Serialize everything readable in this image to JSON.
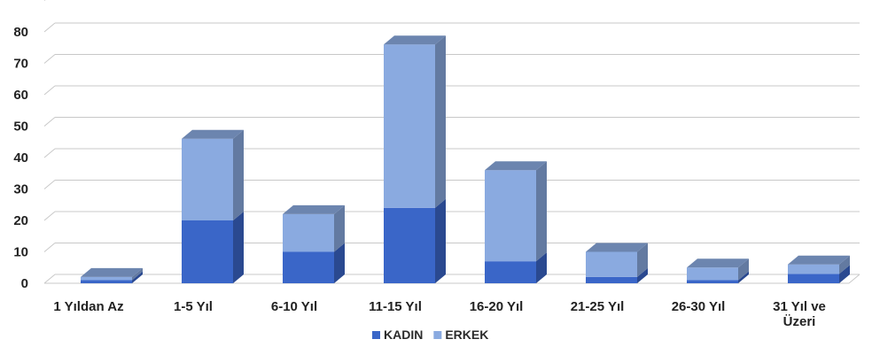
{
  "chart_data": {
    "type": "bar",
    "stacked": true,
    "style": "3d-stacked-column",
    "categories": [
      "1 Yıldan Az",
      "1-5 Yıl",
      "6-10 Yıl",
      "11-15 Yıl",
      "16-20 Yıl",
      "21-25 Yıl",
      "26-30 Yıl",
      "31 Yıl ve Üzeri"
    ],
    "category_lines": [
      [
        "1 Yıldan Az"
      ],
      [
        "1-5 Yıl"
      ],
      [
        "6-10 Yıl"
      ],
      [
        "11-15 Yıl"
      ],
      [
        "16-20 Yıl"
      ],
      [
        "21-25 Yıl"
      ],
      [
        "26-30 Yıl"
      ],
      [
        "31 Yıl ve",
        "Üzeri"
      ]
    ],
    "series": [
      {
        "name": "KADIN",
        "color": "#3a66c8",
        "values": [
          1,
          20,
          10,
          24,
          7,
          2,
          1,
          3
        ]
      },
      {
        "name": "ERKEK",
        "color": "#8aaae0",
        "values": [
          1,
          26,
          12,
          52,
          29,
          8,
          4,
          3
        ]
      }
    ],
    "yticks": [
      0,
      10,
      20,
      30,
      40,
      50,
      60,
      70,
      80
    ],
    "ylim": [
      0,
      90
    ],
    "title": "",
    "xlabel": "",
    "ylabel": "",
    "grid": true,
    "legend_position": "bottom"
  }
}
